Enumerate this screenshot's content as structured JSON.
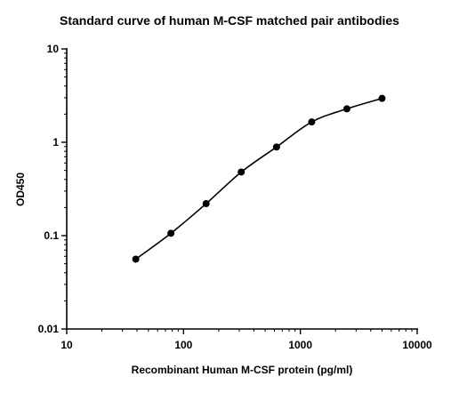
{
  "chart_data": {
    "type": "scatter",
    "title": "Standard curve of human M-CSF matched pair antibodies",
    "xlabel": "Recombinant Human M-CSF protein (pg/ml)",
    "ylabel": "OD450",
    "xscale": "log",
    "yscale": "log",
    "xlim": [
      10,
      10000
    ],
    "ylim": [
      0.01,
      10
    ],
    "x_ticks": [
      {
        "value": 10,
        "label": "10"
      },
      {
        "value": 100,
        "label": "100"
      },
      {
        "value": 1000,
        "label": "1000"
      },
      {
        "value": 10000,
        "label": "10000"
      }
    ],
    "y_ticks": [
      {
        "value": 0.01,
        "label": "0.01"
      },
      {
        "value": 0.1,
        "label": "0.1"
      },
      {
        "value": 1,
        "label": "1"
      },
      {
        "value": 10,
        "label": "10"
      }
    ],
    "grid": false,
    "series": [
      {
        "marker": "filled-circle",
        "color": "#000000",
        "fit_line": "smooth-curve",
        "x": [
          39,
          78,
          156,
          312,
          625,
          1250,
          2500,
          5000
        ],
        "y": [
          0.056,
          0.106,
          0.22,
          0.48,
          0.89,
          1.65,
          2.28,
          2.95
        ]
      }
    ]
  }
}
